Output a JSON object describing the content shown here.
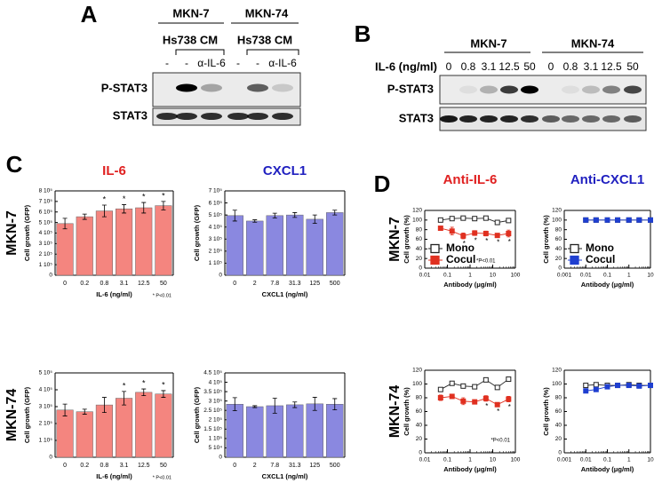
{
  "blot_a": {
    "label": "A",
    "groups": [
      "MKN-7",
      "MKN-74"
    ],
    "treatment": [
      "Hs738 CM",
      "Hs738 CM"
    ],
    "lanes": [
      "-",
      "-",
      "α-IL-6",
      "-",
      "-",
      "α-IL-6"
    ],
    "rows": [
      "P-STAT3",
      "STAT3"
    ]
  },
  "blot_b": {
    "label": "B",
    "groups": [
      "MKN-7",
      "MKN-74"
    ],
    "dose_label": "IL-6 (ng/ml)",
    "lanes": [
      "0",
      "0.8",
      "3.1",
      "12.5",
      "50",
      "0",
      "0.8",
      "3.1",
      "12.5",
      "50"
    ],
    "rows": [
      "P-STAT3",
      "STAT3"
    ]
  },
  "chart_data": [
    {
      "type": "bar",
      "panel_label": "C",
      "title": "IL-6",
      "title_color": "#e02020",
      "row_label": "MKN-7",
      "categories": [
        "0",
        "0.2",
        "0.8",
        "3.1",
        "12.5",
        "50"
      ],
      "values": [
        490000,
        555000,
        610000,
        630000,
        640000,
        660000
      ],
      "errors": [
        50000,
        25000,
        55000,
        40000,
        50000,
        40000
      ],
      "significance": [
        null,
        null,
        "*",
        "*",
        "*",
        "*"
      ],
      "color": "#f4857f",
      "xlabel": "IL-6 (ng/ml)",
      "ylabel": "Cell growth (GFP)",
      "note": "* P<0.01",
      "ylim": [
        0,
        800000
      ],
      "yticks": [
        0,
        {
          "value": 100000,
          "label": "1 10⁵"
        },
        {
          "value": 200000,
          "label": "2 10⁵"
        },
        {
          "value": 300000,
          "label": "3 10⁵"
        },
        {
          "value": 400000,
          "label": "4 10⁵"
        },
        {
          "value": 500000,
          "label": "5 10⁵"
        },
        {
          "value": 600000,
          "label": "6 10⁵"
        },
        {
          "value": 700000,
          "label": "7 10⁵"
        },
        {
          "value": 800000,
          "label": "8 10⁵"
        }
      ]
    },
    {
      "type": "bar",
      "title": "CXCL1",
      "title_color": "#2020c0",
      "categories": [
        "0",
        "2",
        "7.8",
        "31.3",
        "125",
        "500"
      ],
      "values": [
        495000,
        450000,
        495000,
        500000,
        465000,
        520000
      ],
      "errors": [
        45000,
        10000,
        20000,
        20000,
        35000,
        20000
      ],
      "color": "#8a88e0",
      "xlabel": "CXCL1 (ng/ml)",
      "ylabel": "Cell growth (GFP)",
      "ylim": [
        0,
        700000
      ],
      "yticks": [
        0,
        {
          "value": 100000,
          "label": "1 10⁵"
        },
        {
          "value": 200000,
          "label": "2 10⁵"
        },
        {
          "value": 300000,
          "label": "3 10⁵"
        },
        {
          "value": 400000,
          "label": "4 10⁵"
        },
        {
          "value": 500000,
          "label": "5 10⁵"
        },
        {
          "value": 600000,
          "label": "6 10⁵"
        },
        {
          "value": 700000,
          "label": "7 10⁵"
        }
      ]
    },
    {
      "type": "bar",
      "row_label": "MKN-74",
      "categories": [
        "0",
        "0.2",
        "0.8",
        "3.1",
        "12.5",
        "50"
      ],
      "values": [
        280000,
        270000,
        310000,
        350000,
        385000,
        375000
      ],
      "errors": [
        35000,
        15000,
        45000,
        40000,
        20000,
        20000
      ],
      "significance": [
        null,
        null,
        null,
        "*",
        "*",
        "*"
      ],
      "color": "#f4857f",
      "xlabel": "IL-6 (ng/ml)",
      "ylabel": "Cell growth (GFP)",
      "note": "* P<0.01",
      "ylim": [
        0,
        500000
      ],
      "yticks": [
        0,
        {
          "value": 100000,
          "label": "1 10⁵"
        },
        {
          "value": 200000,
          "label": "2 10⁵"
        },
        {
          "value": 300000,
          "label": "3 10⁵"
        },
        {
          "value": 400000,
          "label": "4 10⁵"
        },
        {
          "value": 500000,
          "label": "5 10⁵"
        }
      ]
    },
    {
      "type": "bar",
      "categories": [
        "0",
        "2",
        "7.8",
        "31.3",
        "125",
        "500"
      ],
      "values": [
        283000,
        270000,
        275000,
        280000,
        285000,
        283000
      ],
      "errors": [
        35000,
        5000,
        40000,
        15000,
        35000,
        30000
      ],
      "color": "#8a88e0",
      "xlabel": "CXCL1 (ng/ml)",
      "ylabel": "Cell growth (GFP)",
      "ylim": [
        0,
        450000
      ],
      "yticks": [
        0,
        {
          "value": 50000,
          "label": "5 10⁴"
        },
        {
          "value": 100000,
          "label": "1 10⁵"
        },
        {
          "value": 150000,
          "label": "1.5 10⁵"
        },
        {
          "value": 200000,
          "label": "2 10⁵"
        },
        {
          "value": 250000,
          "label": "2.5 10⁵"
        },
        {
          "value": 300000,
          "label": "3 10⁵"
        },
        {
          "value": 350000,
          "label": "3.5 10⁵"
        },
        {
          "value": 400000,
          "label": "4 10⁵"
        },
        {
          "value": 450000,
          "label": "4.5 10⁵"
        }
      ]
    },
    {
      "type": "line",
      "panel_label": "D",
      "title": "Anti-IL-6",
      "title_color": "#e02020",
      "row_label": "MKN-7",
      "xscale": "log",
      "x": [
        0.05,
        0.16,
        0.5,
        1.6,
        5,
        16,
        50
      ],
      "series": [
        {
          "name": "Mono",
          "color": "#222222",
          "filled": false,
          "values": [
            100,
            103,
            104,
            103,
            104,
            95,
            99
          ]
        },
        {
          "name": "Cocul",
          "color": "#e03020",
          "filled": true,
          "values": [
            83,
            77,
            67,
            73,
            72,
            68,
            72
          ],
          "errors": [
            3,
            8,
            6,
            5,
            5,
            4,
            7
          ]
        }
      ],
      "significance": [
        null,
        null,
        "*",
        "*",
        "*",
        "*",
        "*"
      ],
      "legend": "lower left",
      "note": "*P<0.01",
      "xlabel": "Antibody (μg/ml)",
      "ylabel": "Cell growth (%)",
      "xlim": [
        0.01,
        100
      ],
      "xticks": [
        0.01,
        0.1,
        1,
        10,
        100
      ],
      "ylim": [
        0,
        120
      ],
      "yticks": [
        0,
        20,
        40,
        60,
        80,
        100,
        120
      ]
    },
    {
      "type": "line",
      "title": "Anti-CXCL1",
      "title_color": "#2020c0",
      "xscale": "log",
      "x": [
        0.01,
        0.03,
        0.1,
        0.3,
        1,
        3,
        10
      ],
      "series": [
        {
          "name": "Mono",
          "color": "#222222",
          "filled": false,
          "values": [
            100,
            100,
            100,
            100,
            100,
            100,
            100
          ]
        },
        {
          "name": "Cocul",
          "color": "#1f3fd0",
          "filled": true,
          "values": [
            100,
            100,
            100,
            100,
            100,
            100,
            100
          ]
        }
      ],
      "legend": "lower left",
      "xlabel": "Antibody (μg/ml)",
      "ylabel": "Cell growth (%)",
      "xlim": [
        0.001,
        10
      ],
      "xticks": [
        0.001,
        0.01,
        0.1,
        1,
        10
      ],
      "ylim": [
        0,
        120
      ],
      "yticks": [
        0,
        20,
        40,
        60,
        80,
        100,
        120
      ]
    },
    {
      "type": "line",
      "row_label": "MKN-74",
      "xscale": "log",
      "x": [
        0.05,
        0.16,
        0.5,
        1.6,
        5,
        16,
        50
      ],
      "series": [
        {
          "name": "Mono",
          "color": "#222222",
          "filled": false,
          "values": [
            92,
            101,
            97,
            96,
            106,
            95,
            107
          ]
        },
        {
          "name": "Cocul",
          "color": "#e03020",
          "filled": true,
          "values": [
            80,
            82,
            75,
            74,
            79,
            70,
            78
          ],
          "errors": [
            4,
            3,
            5,
            3,
            4,
            3,
            4
          ]
        }
      ],
      "significance": [
        null,
        null,
        null,
        null,
        "*",
        "*",
        "*"
      ],
      "note": "*P<0.01",
      "xlabel": "Antibody (μg/ml)",
      "ylabel": "Cell growth (%)",
      "xlim": [
        0.01,
        100
      ],
      "xticks": [
        0.01,
        0.1,
        1,
        10,
        100
      ],
      "ylim": [
        0,
        120
      ],
      "yticks": [
        0,
        20,
        40,
        60,
        80,
        100,
        120
      ]
    },
    {
      "type": "line",
      "xscale": "log",
      "x": [
        0.01,
        0.03,
        0.1,
        0.3,
        1,
        3,
        10
      ],
      "series": [
        {
          "name": "Mono",
          "color": "#222222",
          "filled": false,
          "values": [
            98,
            99,
            98,
            98,
            99,
            98,
            98
          ]
        },
        {
          "name": "Cocul",
          "color": "#1f3fd0",
          "filled": true,
          "values": [
            90,
            92,
            96,
            98,
            98,
            97,
            98
          ]
        }
      ],
      "xlabel": "Antibody (μg/ml)",
      "ylabel": "Cell growth (%)",
      "xlim": [
        0.001,
        10
      ],
      "xticks": [
        0.001,
        0.01,
        0.1,
        1,
        10
      ],
      "ylim": [
        0,
        120
      ],
      "yticks": [
        0,
        20,
        40,
        60,
        80,
        100,
        120
      ]
    }
  ]
}
